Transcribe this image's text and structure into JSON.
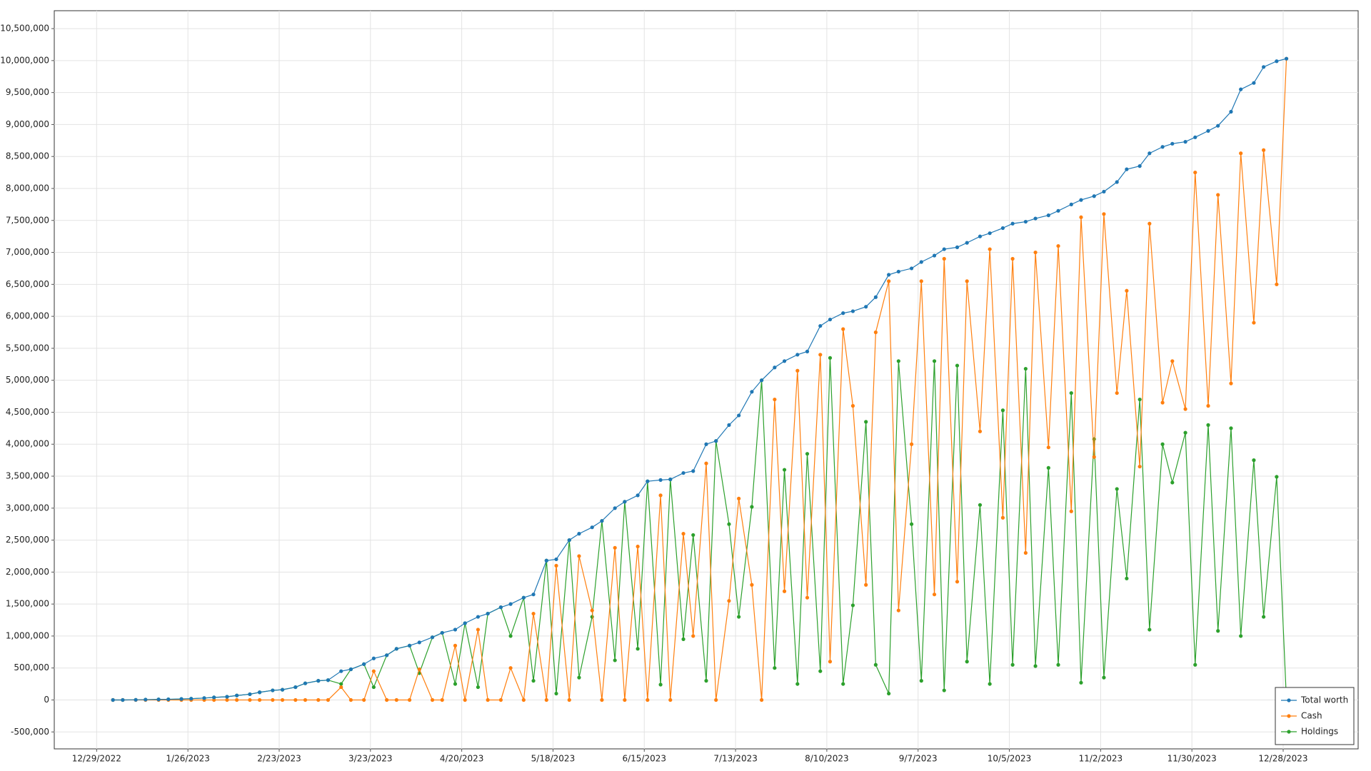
{
  "chart_data": {
    "type": "line",
    "x": [
      "2023-01-03",
      "2023-01-06",
      "2023-01-10",
      "2023-01-13",
      "2023-01-17",
      "2023-01-20",
      "2023-01-24",
      "2023-01-27",
      "2023-01-31",
      "2023-02-03",
      "2023-02-07",
      "2023-02-10",
      "2023-02-14",
      "2023-02-17",
      "2023-02-21",
      "2023-02-24",
      "2023-02-28",
      "2023-03-03",
      "2023-03-07",
      "2023-03-10",
      "2023-03-14",
      "2023-03-17",
      "2023-03-21",
      "2023-03-24",
      "2023-03-28",
      "2023-03-31",
      "2023-04-04",
      "2023-04-07",
      "2023-04-11",
      "2023-04-14",
      "2023-04-18",
      "2023-04-21",
      "2023-04-25",
      "2023-04-28",
      "2023-05-02",
      "2023-05-05",
      "2023-05-09",
      "2023-05-12",
      "2023-05-16",
      "2023-05-19",
      "2023-05-23",
      "2023-05-26",
      "2023-05-30",
      "2023-06-02",
      "2023-06-06",
      "2023-06-09",
      "2023-06-13",
      "2023-06-16",
      "2023-06-20",
      "2023-06-23",
      "2023-06-27",
      "2023-06-30",
      "2023-07-04",
      "2023-07-07",
      "2023-07-11",
      "2023-07-14",
      "2023-07-18",
      "2023-07-21",
      "2023-07-25",
      "2023-07-28",
      "2023-08-01",
      "2023-08-04",
      "2023-08-08",
      "2023-08-11",
      "2023-08-15",
      "2023-08-18",
      "2023-08-22",
      "2023-08-25",
      "2023-08-29",
      "2023-09-01",
      "2023-09-05",
      "2023-09-08",
      "2023-09-12",
      "2023-09-15",
      "2023-09-19",
      "2023-09-22",
      "2023-09-26",
      "2023-09-29",
      "2023-10-03",
      "2023-10-06",
      "2023-10-10",
      "2023-10-13",
      "2023-10-17",
      "2023-10-20",
      "2023-10-24",
      "2023-10-27",
      "2023-10-31",
      "2023-11-03",
      "2023-11-07",
      "2023-11-10",
      "2023-11-14",
      "2023-11-17",
      "2023-11-21",
      "2023-11-24",
      "2023-11-28",
      "2023-12-01",
      "2023-12-05",
      "2023-12-08",
      "2023-12-12",
      "2023-12-15",
      "2023-12-19",
      "2023-12-22",
      "2023-12-26",
      "2023-12-29"
    ],
    "series": [
      {
        "name": "Total worth",
        "color": "#1f77b4",
        "values": [
          0,
          0,
          2000,
          5000,
          8000,
          10000,
          15000,
          20000,
          30000,
          40000,
          50000,
          70000,
          90000,
          120000,
          150000,
          160000,
          200000,
          260000,
          300000,
          310000,
          450000,
          480000,
          560000,
          650000,
          700000,
          800000,
          850000,
          900000,
          980000,
          1050000,
          1100000,
          1200000,
          1300000,
          1350000,
          1450000,
          1500000,
          1600000,
          1650000,
          2180000,
          2200000,
          2500000,
          2600000,
          2700000,
          2800000,
          3000000,
          3100000,
          3200000,
          3420000,
          3440000,
          3450000,
          3550000,
          3580000,
          4000000,
          4050000,
          4300000,
          4450000,
          4820000,
          5000000,
          5200000,
          5300000,
          5400000,
          5450000,
          5850000,
          5950000,
          6050000,
          6080000,
          6150000,
          6300000,
          6650000,
          6700000,
          6750000,
          6850000,
          6950000,
          7050000,
          7080000,
          7150000,
          7250000,
          7300000,
          7380000,
          7450000,
          7480000,
          7530000,
          7580000,
          7650000,
          7750000,
          7820000,
          7880000,
          7950000,
          8100000,
          8300000,
          8350000,
          8550000,
          8650000,
          8700000,
          8730000,
          8800000,
          8900000,
          8980000,
          9200000,
          9550000,
          9650000,
          9900000,
          9990000,
          10030000
        ]
      },
      {
        "name": "Cash",
        "color": "#ff7f0e",
        "values": [
          0,
          0,
          0,
          0,
          0,
          0,
          0,
          0,
          0,
          0,
          0,
          0,
          0,
          0,
          0,
          0,
          0,
          0,
          0,
          0,
          200000,
          0,
          0,
          450000,
          0,
          0,
          0,
          480000,
          0,
          0,
          850000,
          0,
          1100000,
          0,
          0,
          500000,
          0,
          1350000,
          0,
          2100000,
          0,
          2250000,
          1400000,
          0,
          2380000,
          0,
          2400000,
          0,
          3200000,
          0,
          2600000,
          1000000,
          3700000,
          0,
          1550000,
          3150000,
          1800000,
          0,
          4700000,
          1700000,
          5150000,
          1600000,
          5400000,
          600000,
          5800000,
          4600000,
          1800000,
          5750000,
          6550000,
          1400000,
          4000000,
          6550000,
          1650000,
          6900000,
          1850000,
          6550000,
          4200000,
          7050000,
          2850000,
          6900000,
          2300000,
          7000000,
          3950000,
          7100000,
          2950000,
          7550000,
          3800000,
          7600000,
          4800000,
          6400000,
          3650000,
          7450000,
          4650000,
          5300000,
          4550000,
          8250000,
          4600000,
          7900000,
          4950000,
          8550000,
          5900000,
          8600000,
          6500000,
          10030000
        ]
      },
      {
        "name": "Holdings",
        "color": "#2ca02c",
        "values": [
          0,
          0,
          2000,
          5000,
          8000,
          10000,
          15000,
          20000,
          30000,
          40000,
          50000,
          70000,
          90000,
          120000,
          150000,
          160000,
          200000,
          260000,
          300000,
          310000,
          250000,
          480000,
          560000,
          200000,
          700000,
          800000,
          850000,
          420000,
          980000,
          1050000,
          250000,
          1200000,
          200000,
          1350000,
          1450000,
          1000000,
          1600000,
          300000,
          2180000,
          100000,
          2500000,
          350000,
          1300000,
          2800000,
          620000,
          3100000,
          800000,
          3420000,
          240000,
          3450000,
          950000,
          2580000,
          300000,
          4050000,
          2750000,
          1300000,
          3020000,
          5000000,
          500000,
          3600000,
          250000,
          3850000,
          450000,
          5350000,
          250000,
          1480000,
          4350000,
          550000,
          100000,
          5300000,
          2750000,
          300000,
          5300000,
          150000,
          5230000,
          600000,
          3050000,
          250000,
          4530000,
          550000,
          5180000,
          530000,
          3630000,
          550000,
          4800000,
          270000,
          4080000,
          350000,
          3300000,
          1900000,
          4700000,
          1100000,
          4000000,
          3400000,
          4180000,
          550000,
          4300000,
          1080000,
          4250000,
          1000000,
          3750000,
          1300000,
          3490000,
          0
        ]
      }
    ],
    "xlim": [
      "2022-12-16",
      "2024-01-20"
    ],
    "xticks": [
      {
        "value": "2022-12-29",
        "label": "12/29/2022"
      },
      {
        "value": "2023-01-26",
        "label": "1/26/2023"
      },
      {
        "value": "2023-02-23",
        "label": "2/23/2023"
      },
      {
        "value": "2023-03-23",
        "label": "3/23/2023"
      },
      {
        "value": "2023-04-20",
        "label": "4/20/2023"
      },
      {
        "value": "2023-05-18",
        "label": "5/18/2023"
      },
      {
        "value": "2023-06-15",
        "label": "6/15/2023"
      },
      {
        "value": "2023-07-13",
        "label": "7/13/2023"
      },
      {
        "value": "2023-08-10",
        "label": "8/10/2023"
      },
      {
        "value": "2023-09-07",
        "label": "9/7/2023"
      },
      {
        "value": "2023-10-05",
        "label": "10/5/2023"
      },
      {
        "value": "2023-11-02",
        "label": "11/2/2023"
      },
      {
        "value": "2023-11-30",
        "label": "11/30/2023"
      },
      {
        "value": "2023-12-28",
        "label": "12/28/2023"
      }
    ],
    "ylim": [
      -765000,
      10780000
    ],
    "yticks": [
      {
        "value": -500000,
        "label": "-500,000"
      },
      0,
      {
        "value": 500000,
        "label": "500,000"
      },
      {
        "value": 1000000,
        "label": "1,000,000"
      },
      {
        "value": 1500000,
        "label": "1,500,000"
      },
      {
        "value": 2000000,
        "label": "2,000,000"
      },
      {
        "value": 2500000,
        "label": "2,500,000"
      },
      {
        "value": 3000000,
        "label": "3,000,000"
      },
      {
        "value": 3500000,
        "label": "3,500,000"
      },
      {
        "value": 4000000,
        "label": "4,000,000"
      },
      {
        "value": 4500000,
        "label": "4,500,000"
      },
      {
        "value": 5000000,
        "label": "5,000,000"
      },
      {
        "value": 5500000,
        "label": "5,500,000"
      },
      {
        "value": 6000000,
        "label": "6,000,000"
      },
      {
        "value": 6500000,
        "label": "6,500,000"
      },
      {
        "value": 7000000,
        "label": "7,000,000"
      },
      {
        "value": 7500000,
        "label": "7,500,000"
      },
      {
        "value": 8000000,
        "label": "8,000,000"
      },
      {
        "value": 8500000,
        "label": "8,500,000"
      },
      {
        "value": 9000000,
        "label": "9,000,000"
      },
      {
        "value": 9500000,
        "label": "9,500,000"
      },
      {
        "value": 10000000,
        "label": "10,000,000"
      },
      {
        "value": 10500000,
        "label": "10,500,000"
      }
    ],
    "grid": true,
    "legend": "lower right"
  }
}
